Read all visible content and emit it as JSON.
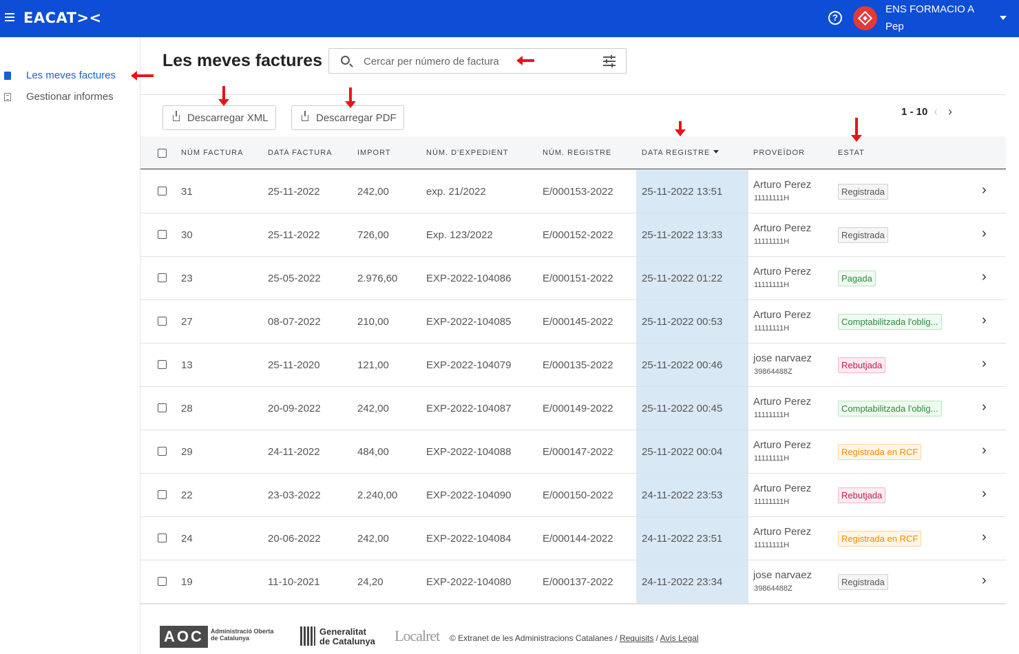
{
  "app": {
    "logo_text": "EACAT><",
    "org_name": "ENS FORMACIO A",
    "user_name": "Pep",
    "help_symbol": "?"
  },
  "sidebar": {
    "items": [
      {
        "label": "Les meves factures",
        "active": true
      },
      {
        "label": "Gestionar informes",
        "active": false
      }
    ]
  },
  "header": {
    "title": "Les meves factures",
    "search_placeholder": "Cercar per número de factura"
  },
  "toolbar": {
    "download_xml": "Descarregar XML",
    "download_pdf": "Descarregar PDF",
    "pagination": "1 - 10",
    "prev_symbol": "‹",
    "next_symbol": "›"
  },
  "table": {
    "columns": [
      "NÚM FACTURA",
      "DATA FACTURA",
      "IMPORT",
      "NÚM. D'EXPEDIENT",
      "NÚM. REGISTRE",
      "DATA REGISTRE",
      "PROVEÏDOR",
      "ESTAT"
    ],
    "sorted_column": "DATA REGISTRE",
    "rows": [
      {
        "num": "31",
        "date": "25-11-2022",
        "import": "242,00",
        "exp": "exp. 21/2022",
        "reg": "E/000153-2022",
        "reg_date": "25-11-2022 13:51",
        "prov": "Arturo Perez",
        "prov_id": "11111111H",
        "status": "Registrada",
        "status_type": "gray"
      },
      {
        "num": "30",
        "date": "25-11-2022",
        "import": "726,00",
        "exp": "Exp. 123/2022",
        "reg": "E/000152-2022",
        "reg_date": "25-11-2022 13:33",
        "prov": "Arturo Perez",
        "prov_id": "11111111H",
        "status": "Registrada",
        "status_type": "gray"
      },
      {
        "num": "23",
        "date": "25-05-2022",
        "import": "2.976,60",
        "exp": "EXP-2022-104086",
        "reg": "E/000151-2022",
        "reg_date": "25-11-2022 01:22",
        "prov": "Arturo Perez",
        "prov_id": "11111111H",
        "status": "Pagada",
        "status_type": "green"
      },
      {
        "num": "27",
        "date": "08-07-2022",
        "import": "210,00",
        "exp": "EXP-2022-104085",
        "reg": "E/000145-2022",
        "reg_date": "25-11-2022 00:53",
        "prov": "Arturo Perez",
        "prov_id": "11111111H",
        "status": "Comptabilitzada l'oblig...",
        "status_type": "green"
      },
      {
        "num": "13",
        "date": "25-11-2020",
        "import": "121,00",
        "exp": "EXP-2022-104079",
        "reg": "E/000135-2022",
        "reg_date": "25-11-2022 00:46",
        "prov": "jose narvaez",
        "prov_id": "39864488Z",
        "status": "Rebutjada",
        "status_type": "red"
      },
      {
        "num": "28",
        "date": "20-09-2022",
        "import": "242,00",
        "exp": "EXP-2022-104087",
        "reg": "E/000149-2022",
        "reg_date": "25-11-2022 00:45",
        "prov": "Arturo Perez",
        "prov_id": "11111111H",
        "status": "Comptabilitzada l'oblig...",
        "status_type": "green"
      },
      {
        "num": "29",
        "date": "24-11-2022",
        "import": "484,00",
        "exp": "EXP-2022-104088",
        "reg": "E/000147-2022",
        "reg_date": "25-11-2022 00:04",
        "prov": "Arturo Perez",
        "prov_id": "11111111H",
        "status": "Registrada en RCF",
        "status_type": "orange"
      },
      {
        "num": "22",
        "date": "23-03-2022",
        "import": "2.240,00",
        "exp": "EXP-2022-104090",
        "reg": "E/000150-2022",
        "reg_date": "24-11-2022 23:53",
        "prov": "Arturo Perez",
        "prov_id": "11111111H",
        "status": "Rebutjada",
        "status_type": "red"
      },
      {
        "num": "24",
        "date": "20-06-2022",
        "import": "242,00",
        "exp": "EXP-2022-104084",
        "reg": "E/000144-2022",
        "reg_date": "24-11-2022 23:51",
        "prov": "Arturo Perez",
        "prov_id": "11111111H",
        "status": "Registrada en RCF",
        "status_type": "orange"
      },
      {
        "num": "19",
        "date": "11-10-2021",
        "import": "24,20",
        "exp": "EXP-2022-104080",
        "reg": "E/000137-2022",
        "reg_date": "24-11-2022 23:34",
        "prov": "jose narvaez",
        "prov_id": "39864488Z",
        "status": "Registrada",
        "status_type": "gray"
      }
    ]
  },
  "footer": {
    "aoc_logo": "AOC",
    "aoc_line1": "Administració Oberta",
    "aoc_line2": "de Catalunya",
    "gen_line1": "Generalitat",
    "gen_line2": "de Catalunya",
    "localret": "Localret",
    "copyright": "© Extranet de les Administracions Catalanes / ",
    "link_requisits": "Requisits",
    "separator": " / ",
    "link_legal": "Avís Legal"
  },
  "colors": {
    "topbar": "#0e4dd6",
    "accent": "#1a5fd6",
    "highlight_column": "#d9e8f5",
    "annotation_arrow": "#e8141c"
  }
}
